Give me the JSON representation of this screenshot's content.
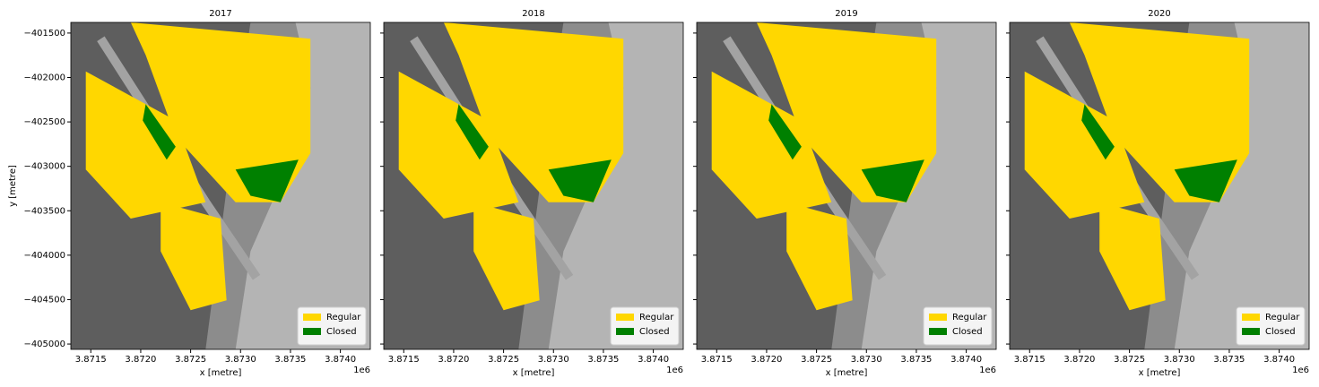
{
  "chart_data": [
    {
      "type": "raster",
      "title": "2017",
      "xlabel": "x [metre]",
      "ylabel": "y [metre]",
      "x_offset_label": "1e6",
      "xlim": [
        3871300,
        3874300
      ],
      "xticks": [
        {
          "value": 3871500,
          "label": "3.8715"
        },
        {
          "value": 3872000,
          "label": "3.8720"
        },
        {
          "value": 3872500,
          "label": "3.8725"
        },
        {
          "value": 3873000,
          "label": "3.8730"
        },
        {
          "value": 3873500,
          "label": "3.8735"
        },
        {
          "value": 3874000,
          "label": "3.8740"
        }
      ],
      "ylim": [
        -405060,
        -401380
      ],
      "yticks": [
        {
          "value": -401500,
          "label": "−401500"
        },
        {
          "value": -402000,
          "label": "−402000"
        },
        {
          "value": -402500,
          "label": "−402500"
        },
        {
          "value": -403000,
          "label": "−403000"
        },
        {
          "value": -403500,
          "label": "−403500"
        },
        {
          "value": -404000,
          "label": "−404000"
        },
        {
          "value": -404500,
          "label": "−404500"
        },
        {
          "value": -405000,
          "label": "−405000"
        }
      ],
      "legend": "lower right",
      "classes": [
        {
          "name": "Regular",
          "color": "#ffd700"
        },
        {
          "name": "Closed",
          "color": "#008000"
        }
      ]
    },
    {
      "type": "raster",
      "title": "2018",
      "xlabel": "x [metre]",
      "x_offset_label": "1e6",
      "xlim": [
        3871300,
        3874300
      ],
      "xticks": [
        {
          "value": 3871500,
          "label": "3.8715"
        },
        {
          "value": 3872000,
          "label": "3.8720"
        },
        {
          "value": 3872500,
          "label": "3.8725"
        },
        {
          "value": 3873000,
          "label": "3.8730"
        },
        {
          "value": 3873500,
          "label": "3.8735"
        },
        {
          "value": 3874000,
          "label": "3.8740"
        }
      ],
      "ylim": [
        -405060,
        -401380
      ],
      "legend": "lower right",
      "classes": [
        {
          "name": "Regular",
          "color": "#ffd700"
        },
        {
          "name": "Closed",
          "color": "#008000"
        }
      ]
    },
    {
      "type": "raster",
      "title": "2019",
      "xlabel": "x [metre]",
      "x_offset_label": "1e6",
      "xlim": [
        3871300,
        3874300
      ],
      "xticks": [
        {
          "value": 3871500,
          "label": "3.8715"
        },
        {
          "value": 3872000,
          "label": "3.8720"
        },
        {
          "value": 3872500,
          "label": "3.8725"
        },
        {
          "value": 3873000,
          "label": "3.8730"
        },
        {
          "value": 3873500,
          "label": "3.8735"
        },
        {
          "value": 3874000,
          "label": "3.8740"
        }
      ],
      "ylim": [
        -405060,
        -401380
      ],
      "legend": "lower right",
      "classes": [
        {
          "name": "Regular",
          "color": "#ffd700"
        },
        {
          "name": "Closed",
          "color": "#008000"
        }
      ]
    },
    {
      "type": "raster",
      "title": "2020",
      "xlabel": "x [metre]",
      "x_offset_label": "1e6",
      "xlim": [
        3871300,
        3874300
      ],
      "xticks": [
        {
          "value": 3871500,
          "label": "3.8715"
        },
        {
          "value": 3872000,
          "label": "3.8720"
        },
        {
          "value": 3872500,
          "label": "3.8725"
        },
        {
          "value": 3873000,
          "label": "3.8730"
        },
        {
          "value": 3873500,
          "label": "3.8735"
        },
        {
          "value": 3874000,
          "label": "3.8740"
        }
      ],
      "ylim": [
        -405060,
        -401380
      ],
      "legend": "lower right",
      "classes": [
        {
          "name": "Regular",
          "color": "#ffd700"
        },
        {
          "name": "Closed",
          "color": "#008000"
        }
      ]
    }
  ]
}
